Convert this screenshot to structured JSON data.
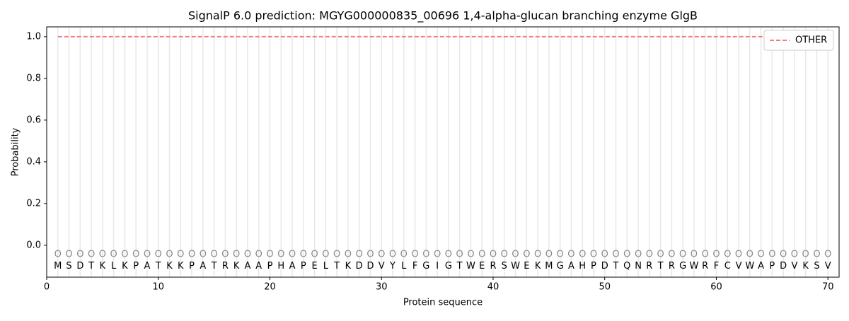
{
  "chart_data": {
    "type": "line",
    "title": "SignalP 6.0 prediction: MGYG000000835_00696 1,4-alpha-glucan branching enzyme GlgB",
    "xlabel": "Protein sequence",
    "ylabel": "Probability",
    "x": [
      1,
      2,
      3,
      4,
      5,
      6,
      7,
      8,
      9,
      10,
      11,
      12,
      13,
      14,
      15,
      16,
      17,
      18,
      19,
      20,
      21,
      22,
      23,
      24,
      25,
      26,
      27,
      28,
      29,
      30,
      31,
      32,
      33,
      34,
      35,
      36,
      37,
      38,
      39,
      40,
      41,
      42,
      43,
      44,
      45,
      46,
      47,
      48,
      49,
      50,
      51,
      52,
      53,
      54,
      55,
      56,
      57,
      58,
      59,
      60,
      61,
      62,
      63,
      64,
      65,
      66,
      67,
      68,
      69,
      70
    ],
    "series": [
      {
        "name": "OTHER",
        "color": "#f07f7f",
        "dash": true,
        "values": [
          1,
          1,
          1,
          1,
          1,
          1,
          1,
          1,
          1,
          1,
          1,
          1,
          1,
          1,
          1,
          1,
          1,
          1,
          1,
          1,
          1,
          1,
          1,
          1,
          1,
          1,
          1,
          1,
          1,
          1,
          1,
          1,
          1,
          1,
          1,
          1,
          1,
          1,
          1,
          1,
          1,
          1,
          1,
          1,
          1,
          1,
          1,
          1,
          1,
          1,
          1,
          1,
          1,
          1,
          1,
          1,
          1,
          1,
          1,
          1,
          1,
          1,
          1,
          1,
          1,
          1,
          1,
          1,
          1,
          1
        ]
      }
    ],
    "residues": [
      "M",
      "S",
      "D",
      "T",
      "K",
      "L",
      "K",
      "P",
      "A",
      "T",
      "K",
      "K",
      "P",
      "A",
      "T",
      "R",
      "K",
      "A",
      "A",
      "P",
      "H",
      "A",
      "P",
      "E",
      "L",
      "T",
      "K",
      "D",
      "D",
      "V",
      "Y",
      "L",
      "F",
      "G",
      "I",
      "G",
      "T",
      "W",
      "E",
      "R",
      "S",
      "W",
      "E",
      "K",
      "M",
      "G",
      "A",
      "H",
      "P",
      "D",
      "T",
      "Q",
      "N",
      "R",
      "T",
      "R",
      "G",
      "W",
      "R",
      "F",
      "C",
      "V",
      "W",
      "A",
      "P",
      "D",
      "V",
      "K",
      "S",
      "V"
    ],
    "region_labels": [
      "O",
      "O",
      "O",
      "O",
      "O",
      "O",
      "O",
      "O",
      "O",
      "O",
      "O",
      "O",
      "O",
      "O",
      "O",
      "O",
      "O",
      "O",
      "O",
      "O",
      "O",
      "O",
      "O",
      "O",
      "O",
      "O",
      "O",
      "O",
      "O",
      "O",
      "O",
      "O",
      "O",
      "O",
      "O",
      "O",
      "O",
      "O",
      "O",
      "O",
      "O",
      "O",
      "O",
      "O",
      "O",
      "O",
      "O",
      "O",
      "O",
      "O",
      "O",
      "O",
      "O",
      "O",
      "O",
      "O",
      "O",
      "O",
      "O",
      "O",
      "O",
      "O",
      "O",
      "O",
      "O",
      "O",
      "O",
      "O",
      "O",
      "O"
    ],
    "xlim": [
      0,
      71
    ],
    "ylim": [
      -0.153,
      1.047
    ],
    "xticks": [
      0,
      10,
      20,
      30,
      40,
      50,
      60,
      70
    ],
    "yticks": [
      {
        "value": 0,
        "label": "0.0"
      },
      0.2,
      0.4,
      0.6,
      0.8,
      {
        "value": 1,
        "label": "1.0"
      }
    ],
    "legend": "upper right"
  }
}
